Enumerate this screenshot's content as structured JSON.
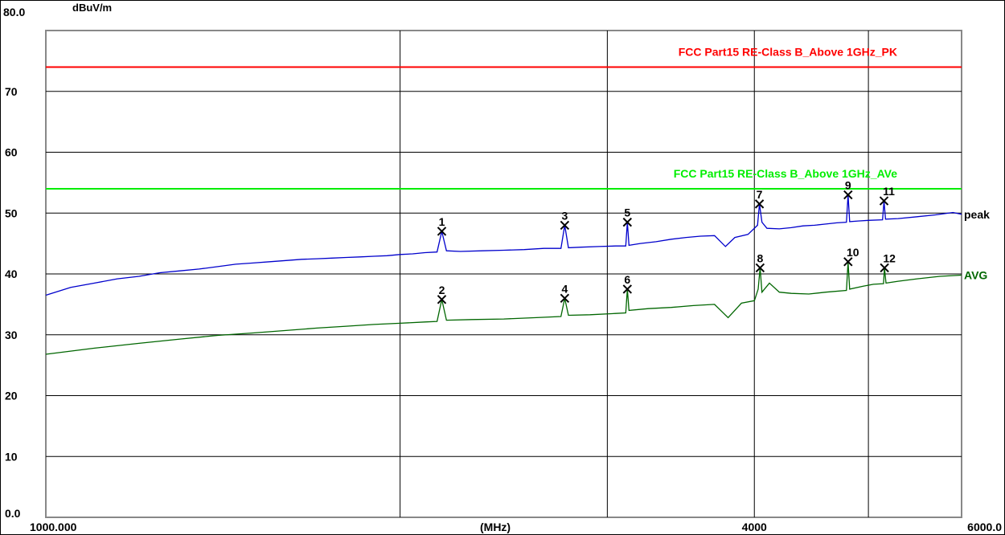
{
  "chart_data": {
    "type": "line",
    "ylabel": "dBuV/m",
    "xlabel": "(MHz)",
    "y_top_label": "80.0",
    "ylim": [
      0,
      80
    ],
    "xlim": [
      1000,
      6000
    ],
    "x_scale": "log",
    "yticks": [
      {
        "value": 70,
        "label": "70"
      },
      {
        "value": 60,
        "label": "60"
      },
      {
        "value": 50,
        "label": "50"
      },
      {
        "value": 40,
        "label": "40"
      },
      {
        "value": 30,
        "label": "30"
      },
      {
        "value": 20,
        "label": "20"
      },
      {
        "value": 10,
        "label": "10"
      },
      {
        "value": 0,
        "label": "0.0"
      }
    ],
    "xticks": [
      {
        "value": 1000,
        "label": "1000.000"
      },
      {
        "value": 4000,
        "label": "4000"
      },
      {
        "value": 6000,
        "label": "6000.0"
      }
    ],
    "x_gridlines": [
      2000,
      3000,
      4000,
      5000
    ],
    "limit_lines": [
      {
        "name": "FCC Part15 RE-Class B_Above 1GHz_PK",
        "value": 74,
        "color": "#ff0000"
      },
      {
        "name": "FCC Part15 RE-Class B_Above 1GHz_AVe",
        "value": 54,
        "color": "#00ee00"
      }
    ],
    "series": [
      {
        "name": "peak",
        "color": "#0000cc",
        "label_color": "#000000",
        "points": [
          [
            1000,
            36.5
          ],
          [
            1050,
            37.8
          ],
          [
            1100,
            38.5
          ],
          [
            1150,
            39.2
          ],
          [
            1200,
            39.6
          ],
          [
            1250,
            40.2
          ],
          [
            1300,
            40.5
          ],
          [
            1350,
            40.8
          ],
          [
            1400,
            41.2
          ],
          [
            1450,
            41.6
          ],
          [
            1500,
            41.8
          ],
          [
            1550,
            42.0
          ],
          [
            1600,
            42.2
          ],
          [
            1650,
            42.4
          ],
          [
            1700,
            42.5
          ],
          [
            1750,
            42.6
          ],
          [
            1800,
            42.7
          ],
          [
            1850,
            42.8
          ],
          [
            1900,
            42.9
          ],
          [
            1950,
            43.0
          ],
          [
            2000,
            43.2
          ],
          [
            2050,
            43.3
          ],
          [
            2100,
            43.5
          ],
          [
            2150,
            43.6
          ],
          [
            2170,
            47.0
          ],
          [
            2190,
            43.8
          ],
          [
            2250,
            43.7
          ],
          [
            2350,
            43.8
          ],
          [
            2450,
            43.9
          ],
          [
            2550,
            44.0
          ],
          [
            2650,
            44.2
          ],
          [
            2740,
            44.2
          ],
          [
            2760,
            48.0
          ],
          [
            2780,
            44.3
          ],
          [
            2850,
            44.4
          ],
          [
            2950,
            44.5
          ],
          [
            3050,
            44.6
          ],
          [
            3110,
            44.6
          ],
          [
            3120,
            48.5
          ],
          [
            3130,
            44.7
          ],
          [
            3200,
            45.0
          ],
          [
            3300,
            45.3
          ],
          [
            3400,
            45.7
          ],
          [
            3500,
            46.0
          ],
          [
            3600,
            46.2
          ],
          [
            3700,
            46.3
          ],
          [
            3780,
            44.5
          ],
          [
            3850,
            46.0
          ],
          [
            3950,
            46.5
          ],
          [
            4025,
            48.0
          ],
          [
            4040,
            51.5
          ],
          [
            4060,
            48.5
          ],
          [
            4100,
            47.5
          ],
          [
            4200,
            47.4
          ],
          [
            4300,
            47.6
          ],
          [
            4400,
            47.9
          ],
          [
            4500,
            48.0
          ],
          [
            4600,
            48.2
          ],
          [
            4700,
            48.4
          ],
          [
            4790,
            48.5
          ],
          [
            4805,
            53.0
          ],
          [
            4820,
            48.6
          ],
          [
            4900,
            48.7
          ],
          [
            5000,
            48.8
          ],
          [
            5140,
            48.9
          ],
          [
            5155,
            52.0
          ],
          [
            5170,
            49.0
          ],
          [
            5300,
            49.1
          ],
          [
            5500,
            49.4
          ],
          [
            5700,
            49.7
          ],
          [
            5900,
            50.1
          ],
          [
            6000,
            49.8
          ]
        ]
      },
      {
        "name": "AVG",
        "color": "#006600",
        "label_color": "#006600",
        "points": [
          [
            1000,
            26.8
          ],
          [
            1100,
            27.8
          ],
          [
            1200,
            28.6
          ],
          [
            1300,
            29.3
          ],
          [
            1400,
            29.9
          ],
          [
            1500,
            30.3
          ],
          [
            1600,
            30.7
          ],
          [
            1700,
            31.1
          ],
          [
            1800,
            31.4
          ],
          [
            1900,
            31.7
          ],
          [
            2000,
            31.9
          ],
          [
            2100,
            32.1
          ],
          [
            2150,
            32.2
          ],
          [
            2170,
            35.8
          ],
          [
            2190,
            32.4
          ],
          [
            2300,
            32.5
          ],
          [
            2450,
            32.6
          ],
          [
            2600,
            32.8
          ],
          [
            2740,
            33.0
          ],
          [
            2760,
            36.0
          ],
          [
            2780,
            33.2
          ],
          [
            2900,
            33.3
          ],
          [
            3050,
            33.5
          ],
          [
            3110,
            33.6
          ],
          [
            3120,
            37.5
          ],
          [
            3130,
            34.0
          ],
          [
            3250,
            34.3
          ],
          [
            3400,
            34.5
          ],
          [
            3550,
            34.8
          ],
          [
            3700,
            35.0
          ],
          [
            3800,
            32.8
          ],
          [
            3900,
            35.2
          ],
          [
            4000,
            35.6
          ],
          [
            4030,
            37.5
          ],
          [
            4045,
            41.0
          ],
          [
            4060,
            37.0
          ],
          [
            4120,
            38.5
          ],
          [
            4200,
            37.0
          ],
          [
            4300,
            36.8
          ],
          [
            4450,
            36.7
          ],
          [
            4600,
            37.0
          ],
          [
            4790,
            37.3
          ],
          [
            4805,
            42.0
          ],
          [
            4820,
            37.5
          ],
          [
            4950,
            38.0
          ],
          [
            5050,
            38.3
          ],
          [
            5150,
            38.4
          ],
          [
            5160,
            41.0
          ],
          [
            5175,
            38.5
          ],
          [
            5300,
            38.8
          ],
          [
            5500,
            39.2
          ],
          [
            5750,
            39.6
          ],
          [
            6000,
            39.8
          ]
        ]
      }
    ],
    "markers": [
      {
        "label": "1",
        "x": 2170,
        "y": 47.0
      },
      {
        "label": "2",
        "x": 2170,
        "y": 35.8
      },
      {
        "label": "3",
        "x": 2760,
        "y": 48.0
      },
      {
        "label": "4",
        "x": 2760,
        "y": 36.0
      },
      {
        "label": "5",
        "x": 3120,
        "y": 48.5
      },
      {
        "label": "6",
        "x": 3120,
        "y": 37.5
      },
      {
        "label": "7",
        "x": 4040,
        "y": 51.5
      },
      {
        "label": "8",
        "x": 4045,
        "y": 41.0
      },
      {
        "label": "9",
        "x": 4805,
        "y": 53.0
      },
      {
        "label": "10",
        "x": 4805,
        "y": 42.0
      },
      {
        "label": "11",
        "x": 5155,
        "y": 52.0
      },
      {
        "label": "12",
        "x": 5160,
        "y": 41.0
      }
    ]
  }
}
